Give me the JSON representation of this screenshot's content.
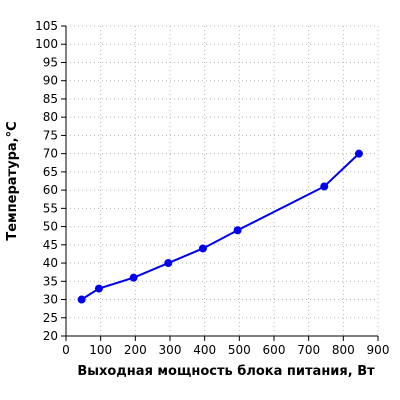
{
  "chart_data": {
    "type": "line",
    "title": "",
    "xlabel": "Выходная мощность блока питания, Вт",
    "ylabel": "Температура,°C",
    "xlim": [
      0,
      900
    ],
    "ylim": [
      20,
      105
    ],
    "xticks": [
      0,
      100,
      200,
      300,
      400,
      500,
      600,
      700,
      800,
      900
    ],
    "yticks": [
      20,
      25,
      30,
      35,
      40,
      45,
      50,
      55,
      60,
      65,
      70,
      75,
      80,
      85,
      90,
      95,
      100,
      105
    ],
    "xtick_labels": [
      "0",
      "100",
      "200",
      "300",
      "400",
      "500",
      "600",
      "700",
      "800",
      "900"
    ],
    "ytick_labels": [
      "20",
      "25",
      "30",
      "35",
      "40",
      "45",
      "50",
      "55",
      "60",
      "65",
      "70",
      "75",
      "80",
      "85",
      "90",
      "95",
      "100",
      "105"
    ],
    "grid": true,
    "legend": "none",
    "series": [
      {
        "color": "#0000ee",
        "x": [
          45,
          95,
          195,
          295,
          395,
          495,
          745,
          845
        ],
        "y": [
          30,
          33,
          36,
          40,
          44,
          49,
          61,
          70
        ]
      }
    ]
  }
}
